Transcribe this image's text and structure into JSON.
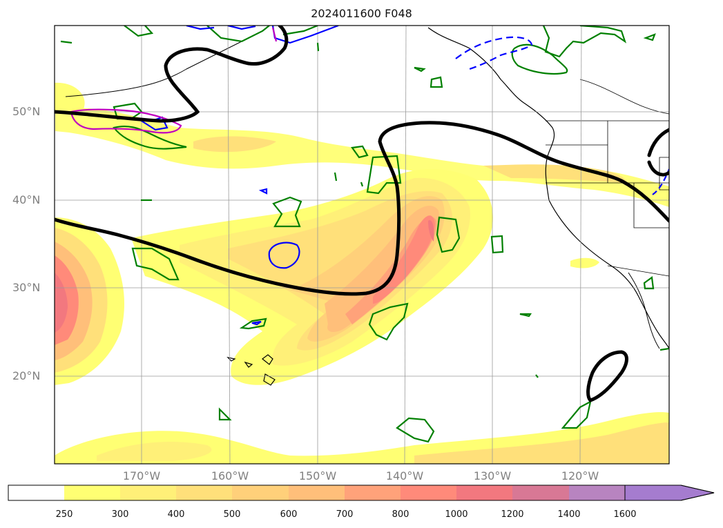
{
  "title": "2024011600 F048",
  "lat_labels": [
    "50°N",
    "40°N",
    "30°N",
    "20°N"
  ],
  "lon_labels": [
    "170°W",
    "160°W",
    "150°W",
    "140°W",
    "130°W",
    "120°W"
  ],
  "colorbar": {
    "ticks": [
      "250",
      "300",
      "400",
      "500",
      "600",
      "700",
      "800",
      "1000",
      "1200",
      "1400",
      "1600"
    ],
    "colors": [
      "#ffffff",
      "#ffff73",
      "#fff078",
      "#ffe07a",
      "#ffd07a",
      "#ffbf7a",
      "#ffa27a",
      "#ff8a7a",
      "#f2787f",
      "#d87895",
      "#b884c0",
      "#a57ccf"
    ],
    "extend": "max"
  },
  "contour_colors": {
    "thick_line": "#000000",
    "green": "#008000",
    "blue": "#0000ff",
    "magenta": "#c000c0"
  }
}
